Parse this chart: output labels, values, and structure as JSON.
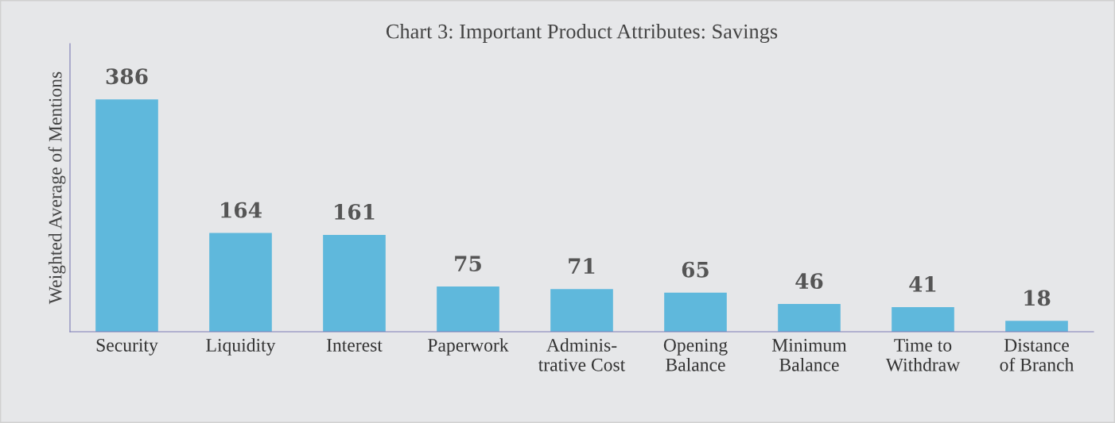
{
  "chart_data": {
    "type": "bar",
    "title": "Chart 3: Important Product Attributes: Savings",
    "ylabel": "Weighted Average of Mentions",
    "categories": [
      "Security",
      "Liquidity",
      "Interest",
      "Paperwork",
      "Adminis-\ntrative Cost",
      "Opening\nBalance",
      "Minimum\nBalance",
      "Time to\nWithdraw",
      "Distance\nof Branch"
    ],
    "values": [
      386,
      164,
      161,
      75,
      71,
      65,
      46,
      41,
      18
    ],
    "color": "#5fb8dc",
    "data_labels": true,
    "grid": false,
    "legend": false
  }
}
